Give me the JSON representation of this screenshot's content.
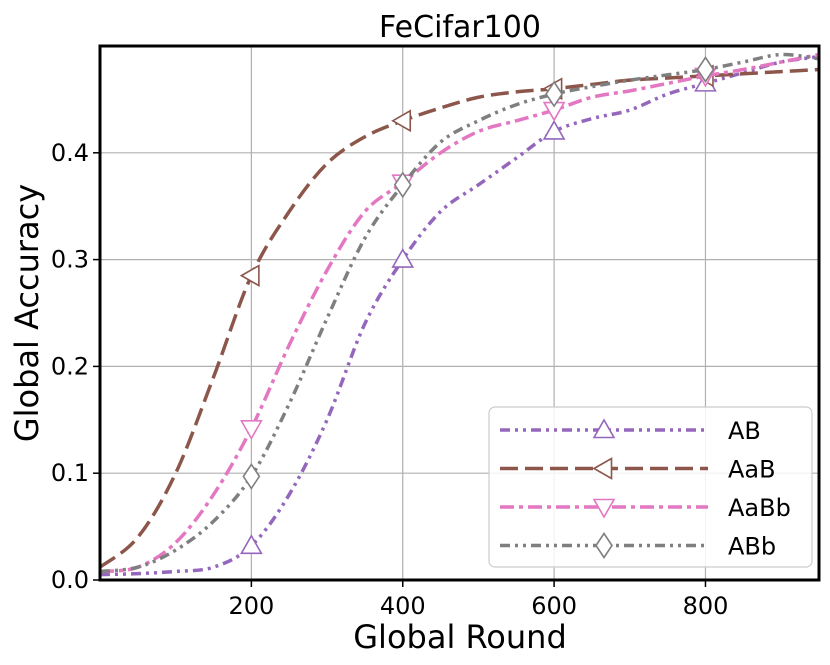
{
  "chart_data": {
    "type": "line",
    "title": "FeCifar100",
    "xlabel": "Global Round",
    "ylabel": "Global Accuracy",
    "xlim": [
      0,
      950
    ],
    "ylim": [
      0,
      0.5
    ],
    "xticks": [
      200,
      400,
      600,
      800
    ],
    "yticks": [
      0.0,
      0.1,
      0.2,
      0.3,
      0.4
    ],
    "xtick_labels": [
      "200",
      "400",
      "600",
      "800"
    ],
    "ytick_labels": [
      "0.0",
      "0.1",
      "0.2",
      "0.3",
      "0.4"
    ],
    "grid": true,
    "legend_position": "lower-right",
    "series": [
      {
        "name": "AB",
        "color": "#9467bd",
        "dash": "dash-dot-dot",
        "marker": "triangle-up",
        "marker_x": [
          200,
          400,
          600,
          800
        ],
        "x": [
          0,
          50,
          100,
          150,
          200,
          250,
          300,
          350,
          400,
          450,
          500,
          550,
          600,
          650,
          700,
          750,
          800,
          850,
          900,
          950
        ],
        "y": [
          0.005,
          0.006,
          0.008,
          0.012,
          0.032,
          0.08,
          0.15,
          0.24,
          0.3,
          0.345,
          0.37,
          0.395,
          0.42,
          0.432,
          0.44,
          0.455,
          0.465,
          0.475,
          0.485,
          0.49
        ]
      },
      {
        "name": "AaB",
        "color": "#8c564b",
        "dash": "long-dash",
        "marker": "triangle-left",
        "marker_x": [
          200,
          400,
          600,
          800
        ],
        "x": [
          0,
          50,
          100,
          150,
          200,
          250,
          300,
          350,
          400,
          450,
          500,
          550,
          600,
          650,
          700,
          750,
          800,
          850,
          900,
          950
        ],
        "y": [
          0.012,
          0.04,
          0.1,
          0.19,
          0.285,
          0.345,
          0.39,
          0.415,
          0.43,
          0.442,
          0.452,
          0.457,
          0.46,
          0.464,
          0.468,
          0.47,
          0.472,
          0.474,
          0.476,
          0.478
        ]
      },
      {
        "name": "AaBb",
        "color": "#e377c2",
        "dash": "dash-dot",
        "marker": "triangle-down",
        "marker_x": [
          200,
          400,
          600,
          800
        ],
        "x": [
          0,
          50,
          100,
          150,
          200,
          250,
          300,
          350,
          400,
          450,
          500,
          550,
          600,
          650,
          700,
          750,
          800,
          850,
          900,
          950
        ],
        "y": [
          0.008,
          0.012,
          0.035,
          0.08,
          0.142,
          0.22,
          0.29,
          0.345,
          0.372,
          0.4,
          0.42,
          0.43,
          0.44,
          0.452,
          0.458,
          0.465,
          0.472,
          0.478,
          0.485,
          0.492
        ]
      },
      {
        "name": "ABb",
        "color": "#7f7f7f",
        "dash": "dash-dot-dot",
        "marker": "diamond",
        "marker_x": [
          200,
          400,
          600,
          800
        ],
        "x": [
          0,
          50,
          100,
          150,
          200,
          250,
          300,
          350,
          400,
          450,
          500,
          550,
          600,
          650,
          700,
          750,
          800,
          850,
          900,
          950
        ],
        "y": [
          0.008,
          0.012,
          0.028,
          0.055,
          0.097,
          0.165,
          0.245,
          0.32,
          0.37,
          0.41,
          0.43,
          0.445,
          0.455,
          0.462,
          0.468,
          0.473,
          0.478,
          0.485,
          0.492,
          0.488
        ]
      }
    ]
  }
}
